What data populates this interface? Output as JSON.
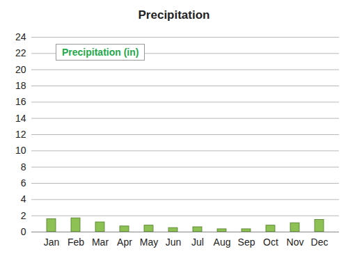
{
  "chart_data": {
    "type": "bar",
    "title": "Precipitation",
    "categories": [
      "Jan",
      "Feb",
      "Mar",
      "Apr",
      "May",
      "Jun",
      "Jul",
      "Aug",
      "Sep",
      "Oct",
      "Nov",
      "Dec"
    ],
    "series": [
      {
        "name": "Precipitation (in)",
        "color": "#8dc153",
        "values": [
          1.6,
          1.7,
          1.2,
          0.7,
          0.8,
          0.5,
          0.6,
          0.35,
          0.35,
          0.8,
          1.1,
          1.5
        ]
      }
    ],
    "ylim": [
      0,
      24
    ],
    "yticks": [
      0,
      2,
      4,
      6,
      8,
      10,
      12,
      14,
      16,
      18,
      20,
      22,
      24
    ],
    "grid": true,
    "legend": "top-left"
  }
}
